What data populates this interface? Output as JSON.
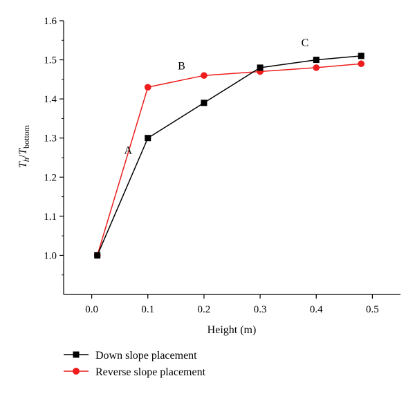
{
  "chart_data": {
    "type": "line",
    "xlabel": "Height (m)",
    "ylabel": {
      "T1": "T",
      "sub1": "h",
      "slash": "/",
      "T2": "T",
      "sub2": "bottom"
    },
    "xlim": [
      -0.05,
      0.55
    ],
    "ylim": [
      0.9,
      1.6
    ],
    "xticks": [
      0.0,
      0.1,
      0.2,
      0.3,
      0.4,
      0.5
    ],
    "xtick_labels": [
      "0.0",
      "0.1",
      "0.2",
      "0.3",
      "0.4",
      "0.5"
    ],
    "yticks": [
      1.0,
      1.1,
      1.2,
      1.3,
      1.4,
      1.5,
      1.6
    ],
    "ytick_labels": [
      "1.0",
      "1.1",
      "1.2",
      "1.3",
      "1.4",
      "1.5",
      "1.6"
    ],
    "grid": false,
    "legend_position": "bottom-left",
    "series": [
      {
        "name": "Down slope placement",
        "color": "#000000",
        "marker": "square",
        "x": [
          0.01,
          0.1,
          0.2,
          0.3,
          0.4,
          0.48
        ],
        "y": [
          1.0,
          1.3,
          1.39,
          1.48,
          1.5,
          1.51
        ]
      },
      {
        "name": "Reverse slope placement",
        "color": "#ee1c1c",
        "marker": "circle",
        "x": [
          0.01,
          0.1,
          0.2,
          0.3,
          0.4,
          0.48
        ],
        "y": [
          1.0,
          1.43,
          1.46,
          1.47,
          1.48,
          1.49
        ]
      }
    ],
    "annotations": [
      {
        "text": "A",
        "x": 0.065,
        "y": 1.26
      },
      {
        "text": "B",
        "x": 0.16,
        "y": 1.475
      },
      {
        "text": "C",
        "x": 0.38,
        "y": 1.535
      }
    ]
  }
}
